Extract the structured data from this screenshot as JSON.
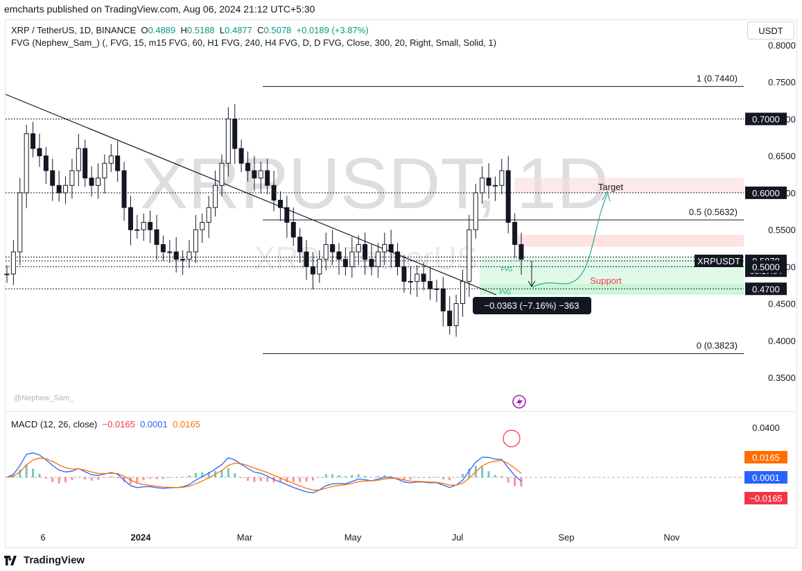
{
  "header": "emcharts published on TradingView.com, Aug 06, 2024 21:12 UTC+5:30",
  "legend": {
    "symbol": "XRP / TetherUS, 1D, BINANCE",
    "o_label": "O",
    "o": "0.4889",
    "h_label": "H",
    "h": "0.5188",
    "l_label": "L",
    "l": "0.4877",
    "c_label": "C",
    "c": "0.5078",
    "change": "+0.0189 (+3.87%)",
    "indicator": "FVG (Nephew_Sam_) (, FVG, 15, m15 FVG, 60, H1 FVG, 240, H4 FVG, D, D FVG, Close, 300, 20, Right, Small, Solid, 1)"
  },
  "currency": "USDT",
  "watermark": {
    "main": "XRPUSDT, 1D",
    "sub": "XRP / TetherUS"
  },
  "author": "@Nephew_Sam_",
  "macd": {
    "label": "MACD (12, 26, close)",
    "hist": "−0.0165",
    "macd": "0.0001",
    "signal": "0.0165"
  },
  "footer": "TradingView",
  "colors": {
    "up": "#089981",
    "down": "#f23645",
    "macd": "#2962ff",
    "signal": "#ff6d00",
    "fvg": "#c8f5d6",
    "zone": "#fcdada"
  },
  "chart_data": {
    "type": "candlestick",
    "title": "XRP / TetherUS, 1D, BINANCE",
    "ylim": [
      0.3,
      0.8
    ],
    "y_ticks": [
      "0.8000",
      "0.7500",
      "0.7000",
      "0.6500",
      "0.6000",
      "0.5500",
      "0.5000",
      "0.4500",
      "0.4000",
      "0.3500"
    ],
    "x_ticks": [
      "6",
      "2024",
      "Mar",
      "May",
      "Jul",
      "Sep",
      "Nov"
    ],
    "price_labels": [
      {
        "text": "0.7000",
        "price": 0.7,
        "style": "dark"
      },
      {
        "text": "0.6000",
        "price": 0.6,
        "style": "dark"
      },
      {
        "text": "XRPUSDT",
        "price": 0.5078,
        "style": "dark-left"
      },
      {
        "text": "0.5078",
        "price": 0.5078,
        "style": "dark"
      },
      {
        "text": "08:17:04",
        "price": 0.4945,
        "style": "dark-small"
      },
      {
        "text": "0.5000",
        "price": 0.5,
        "style": "dark"
      },
      {
        "text": "0.4700",
        "price": 0.47,
        "style": "dark"
      }
    ],
    "fib": [
      {
        "label": "1 (0.7440)",
        "price": 0.744
      },
      {
        "label": "0.5 (0.5632)",
        "price": 0.5632
      },
      {
        "label": "0 (0.3823)",
        "price": 0.3823
      }
    ],
    "horizontal_levels": [
      0.7,
      0.6,
      0.5078,
      0.5,
      0.47
    ],
    "annotations": {
      "target": "Target",
      "support": "Support",
      "fvg": "FVG",
      "measure": "−0.0363 (−7.16%) −363"
    },
    "macd_axis": {
      "ticks": [
        "0.0400",
        "0.0165",
        "0.0001",
        "−0.0165"
      ]
    },
    "series_closes": [
      0.49,
      0.52,
      0.6,
      0.68,
      0.66,
      0.65,
      0.63,
      0.61,
      0.6,
      0.61,
      0.63,
      0.66,
      0.62,
      0.61,
      0.62,
      0.64,
      0.65,
      0.63,
      0.58,
      0.55,
      0.55,
      0.56,
      0.55,
      0.53,
      0.52,
      0.52,
      0.51,
      0.51,
      0.52,
      0.55,
      0.56,
      0.58,
      0.61,
      0.64,
      0.7,
      0.66,
      0.64,
      0.63,
      0.62,
      0.63,
      0.61,
      0.59,
      0.58,
      0.56,
      0.54,
      0.52,
      0.5,
      0.49,
      0.51,
      0.53,
      0.52,
      0.51,
      0.5,
      0.52,
      0.53,
      0.51,
      0.5,
      0.52,
      0.53,
      0.52,
      0.5,
      0.48,
      0.48,
      0.49,
      0.48,
      0.47,
      0.47,
      0.44,
      0.42,
      0.45,
      0.48,
      0.55,
      0.6,
      0.62,
      0.61,
      0.61,
      0.63,
      0.56,
      0.53,
      0.51
    ]
  }
}
